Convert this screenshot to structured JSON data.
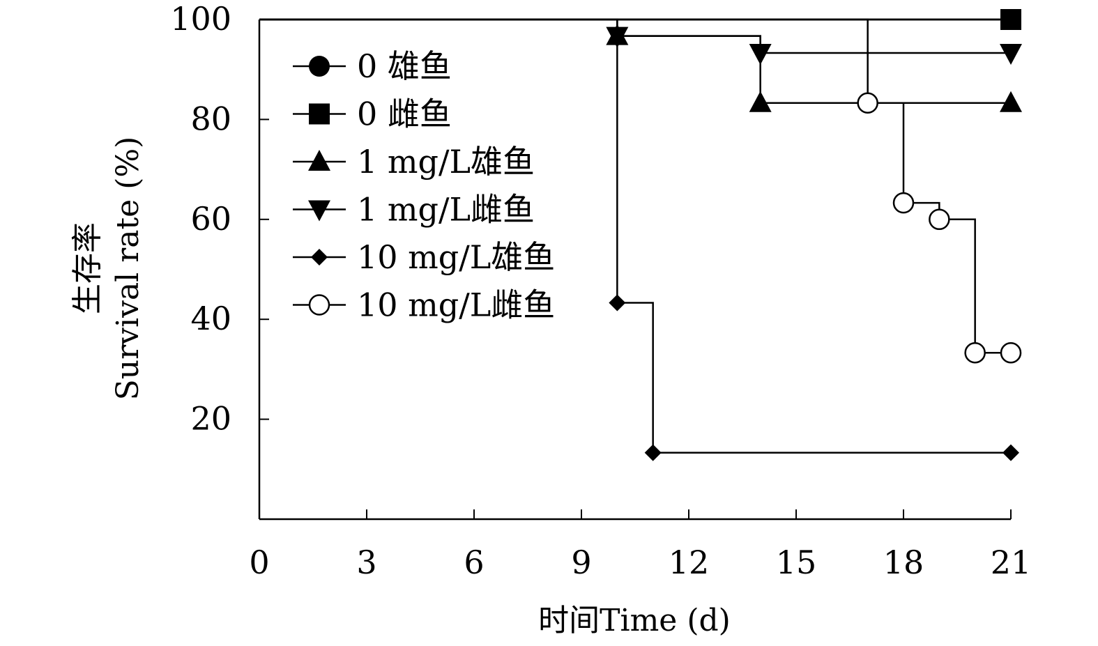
{
  "chart_data": {
    "type": "line",
    "step": true,
    "xlabel": "时间Time (d)",
    "ylabel": [
      "生存率",
      "Survival rate (%)"
    ],
    "xlim": [
      0,
      21
    ],
    "ylim": [
      0,
      100
    ],
    "xticks": [
      "0",
      "3",
      "6",
      "9",
      "12",
      "15",
      "18",
      "21"
    ],
    "yticks": [
      "20",
      "40",
      "60",
      "80",
      "100"
    ],
    "grid": false,
    "legend_position": "top-left",
    "series": [
      {
        "name": "0 雄鱼",
        "marker": "filled-circle",
        "points": [
          [
            0,
            100
          ],
          [
            17,
            100
          ],
          [
            21,
            100
          ]
        ],
        "marked_points": []
      },
      {
        "name": "0 雌鱼",
        "marker": "filled-square",
        "points": [
          [
            0,
            100
          ],
          [
            21,
            100
          ]
        ],
        "marked_points": [
          [
            21,
            100
          ]
        ]
      },
      {
        "name": "1 mg/L雄鱼",
        "marker": "filled-triangle-up",
        "points": [
          [
            0,
            100
          ],
          [
            10,
            100
          ],
          [
            10,
            96.7
          ],
          [
            14,
            96.7
          ],
          [
            14,
            83.3
          ],
          [
            21,
            83.3
          ]
        ],
        "marked_points": [
          [
            10,
            96.7
          ],
          [
            14,
            83.3
          ],
          [
            21,
            83.3
          ]
        ]
      },
      {
        "name": "1 mg/L雌鱼",
        "marker": "filled-triangle-down",
        "points": [
          [
            0,
            100
          ],
          [
            10,
            100
          ],
          [
            10,
            96.7
          ],
          [
            14,
            96.7
          ],
          [
            14,
            93.3
          ],
          [
            21,
            93.3
          ]
        ],
        "marked_points": [
          [
            10,
            96.7
          ],
          [
            14,
            93.3
          ],
          [
            21,
            93.3
          ]
        ]
      },
      {
        "name": "10 mg/L雄鱼",
        "marker": "filled-diamond",
        "points": [
          [
            0,
            100
          ],
          [
            10,
            100
          ],
          [
            10,
            43.3
          ],
          [
            11,
            43.3
          ],
          [
            11,
            13.3
          ],
          [
            21,
            13.3
          ]
        ],
        "marked_points": [
          [
            10,
            43.3
          ],
          [
            11,
            13.3
          ],
          [
            21,
            13.3
          ]
        ]
      },
      {
        "name": "10 mg/L雌鱼",
        "marker": "open-circle",
        "points": [
          [
            0,
            100
          ],
          [
            17,
            100
          ],
          [
            17,
            83.3
          ],
          [
            18,
            83.3
          ],
          [
            18,
            63.3
          ],
          [
            19,
            63.3
          ],
          [
            19,
            60
          ],
          [
            20,
            60
          ],
          [
            20,
            33.3
          ],
          [
            21,
            33.3
          ]
        ],
        "marked_points": [
          [
            17,
            83.3
          ],
          [
            18,
            63.3
          ],
          [
            19,
            60
          ],
          [
            20,
            33.3
          ],
          [
            21,
            33.3
          ]
        ]
      }
    ]
  }
}
